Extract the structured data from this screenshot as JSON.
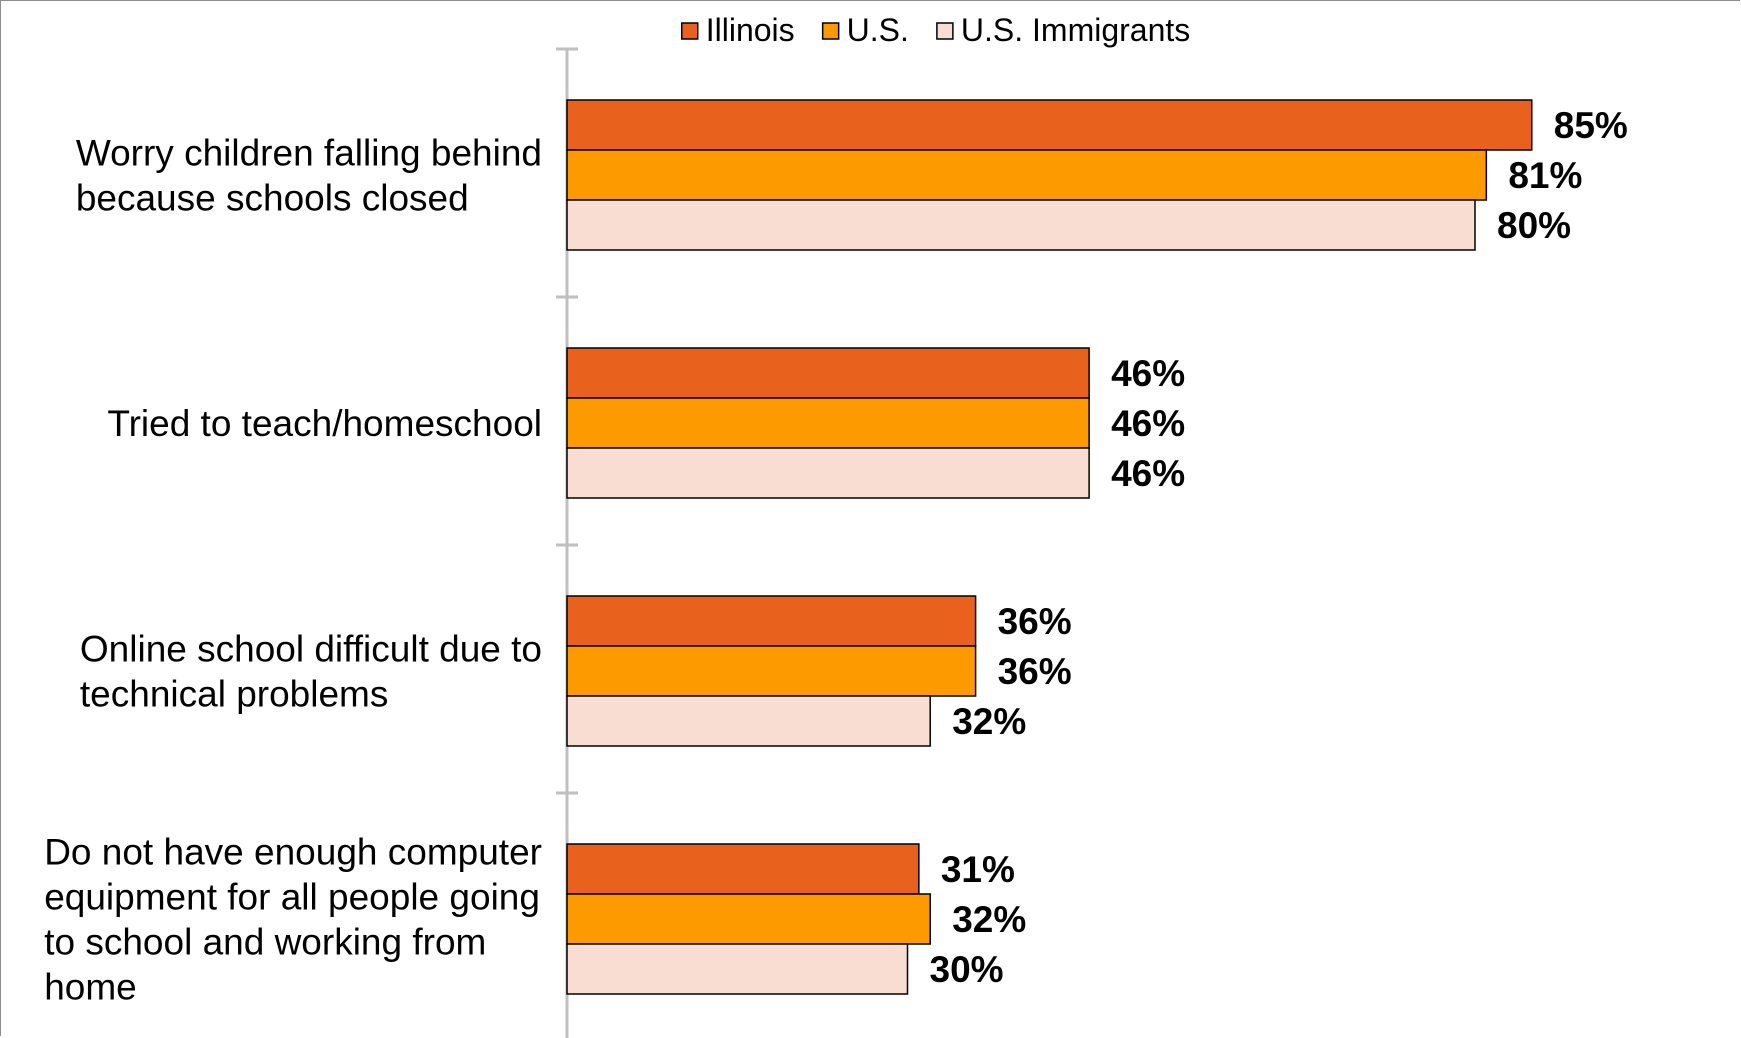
{
  "chart_data": {
    "type": "bar",
    "orientation": "horizontal",
    "categories": [
      [
        "Worry children falling behind",
        "because schools closed"
      ],
      [
        "Tried to teach/homeschool"
      ],
      [
        "Online school difficult due to",
        "technical problems"
      ],
      [
        "Do not have enough computer",
        "equipment for all people going",
        "to school and working from",
        "home"
      ]
    ],
    "series": [
      {
        "name": "Illinois",
        "color": "#E8621E",
        "values": [
          85,
          46,
          36,
          31
        ],
        "labels": [
          "85%",
          "46%",
          "36%",
          "31%"
        ]
      },
      {
        "name": "U.S.",
        "color": "#FD9A00",
        "values": [
          81,
          46,
          36,
          32
        ],
        "labels": [
          "81%",
          "46%",
          "36%",
          "32%"
        ]
      },
      {
        "name": "U.S. Immigrants",
        "color": "#FADDD2",
        "values": [
          80,
          46,
          32,
          30
        ],
        "labels": [
          "80%",
          "46%",
          "32%",
          "30%"
        ]
      }
    ],
    "xlim": [
      0,
      100
    ],
    "title": "",
    "xlabel": "",
    "ylabel": "",
    "grid": false,
    "legend_position": "top-center",
    "axis_color": "#BFBFBF",
    "bar_border_color": "#000000"
  }
}
